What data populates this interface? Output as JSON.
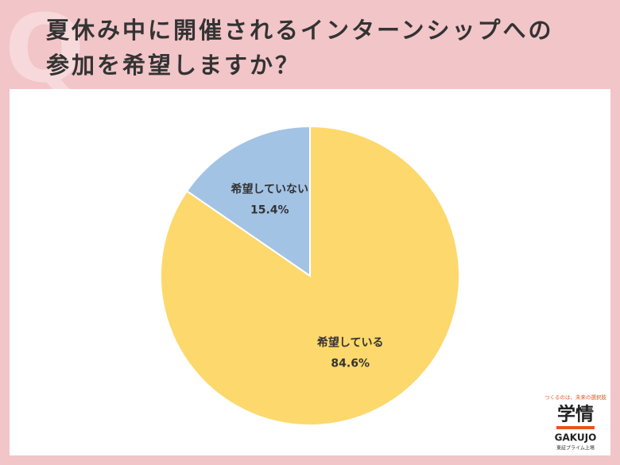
{
  "chart_data": {
    "type": "pie",
    "title": "夏休み中に開催されるインターンシップへの参加を希望しますか？",
    "categories": [
      "希望している",
      "希望していない"
    ],
    "values": [
      84.6,
      15.4
    ],
    "value_labels": [
      "84.6%",
      "15.4%"
    ],
    "colors": [
      "#fdd86c",
      "#a3c3e5"
    ]
  },
  "logo": {
    "tagline": "つくるのは、未来の選択肢",
    "name": "学情",
    "roman": "GAKUJO",
    "listing": "東証プライム上場"
  }
}
